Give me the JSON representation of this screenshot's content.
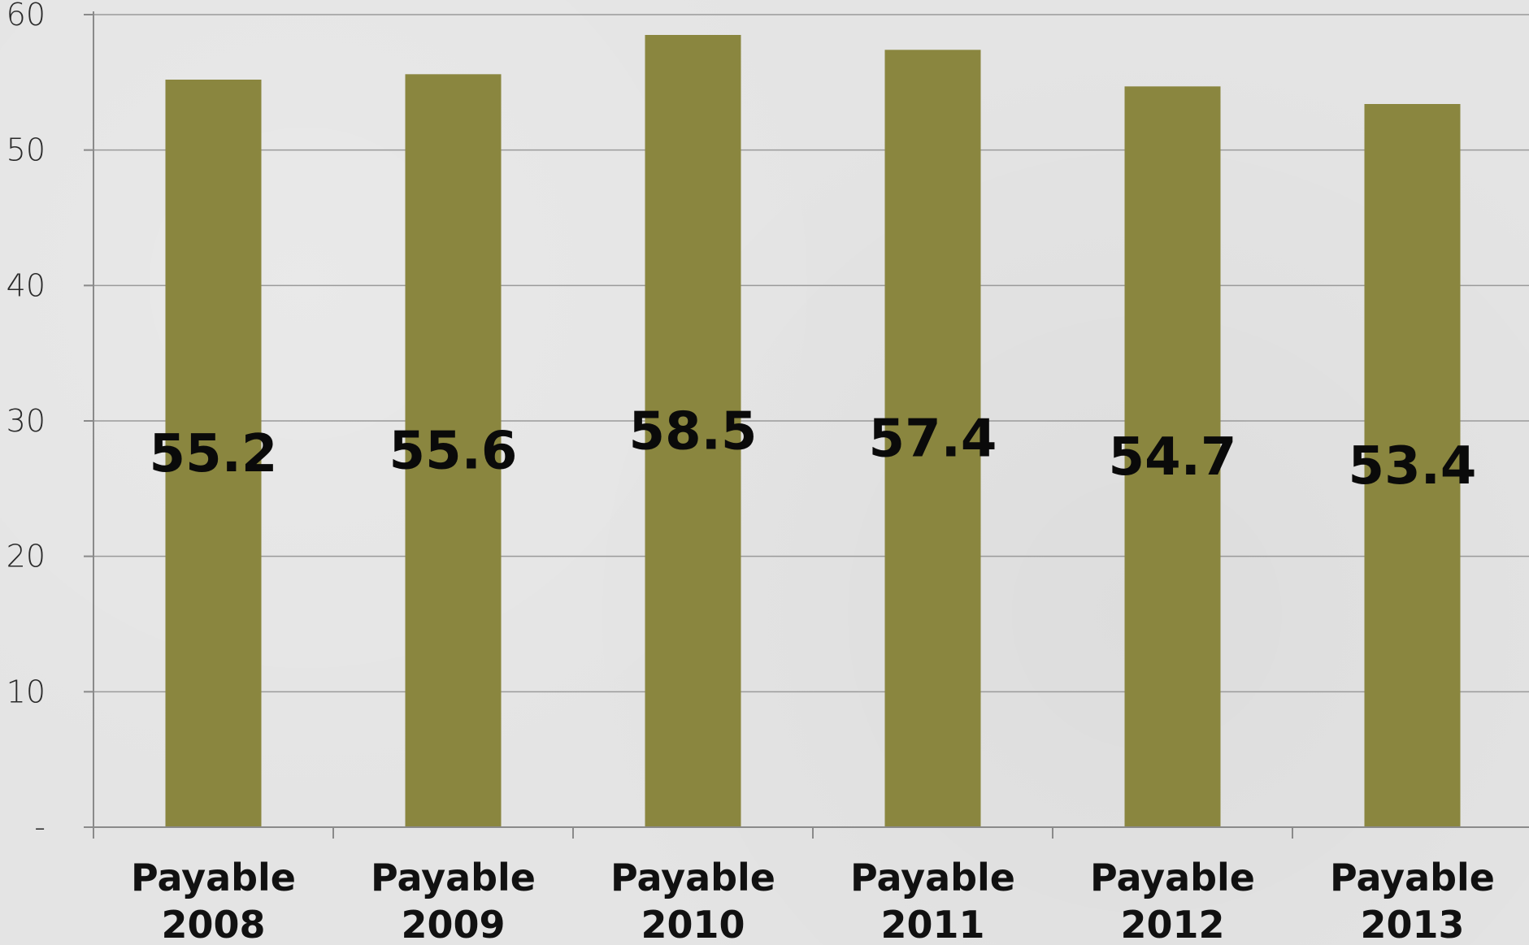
{
  "chart_data": {
    "type": "bar",
    "categories": [
      [
        "Payable",
        "2008"
      ],
      [
        "Payable",
        "2009"
      ],
      [
        "Payable",
        "2010"
      ],
      [
        "Payable",
        "2011"
      ],
      [
        "Payable",
        "2012"
      ],
      [
        "Payable",
        "2013"
      ]
    ],
    "values": [
      55.2,
      55.6,
      58.5,
      57.4,
      54.7,
      53.4
    ],
    "data_labels": [
      "55.2",
      "55.6",
      "58.5",
      "57.4",
      "54.7",
      "53.4"
    ],
    "y_ticks": [
      {
        "value": 0,
        "label": "-"
      },
      {
        "value": 10,
        "label": "10"
      },
      {
        "value": 20,
        "label": "20"
      },
      {
        "value": 30,
        "label": "30"
      },
      {
        "value": 40,
        "label": "40"
      },
      {
        "value": 50,
        "label": "50"
      },
      {
        "value": 60,
        "label": "60"
      }
    ],
    "ylim": [
      0,
      60
    ],
    "grid": true,
    "legend": "none",
    "colors": {
      "bar": "#8a863f",
      "grid": "#9a9a9a",
      "background": "#e4e4e4"
    }
  }
}
